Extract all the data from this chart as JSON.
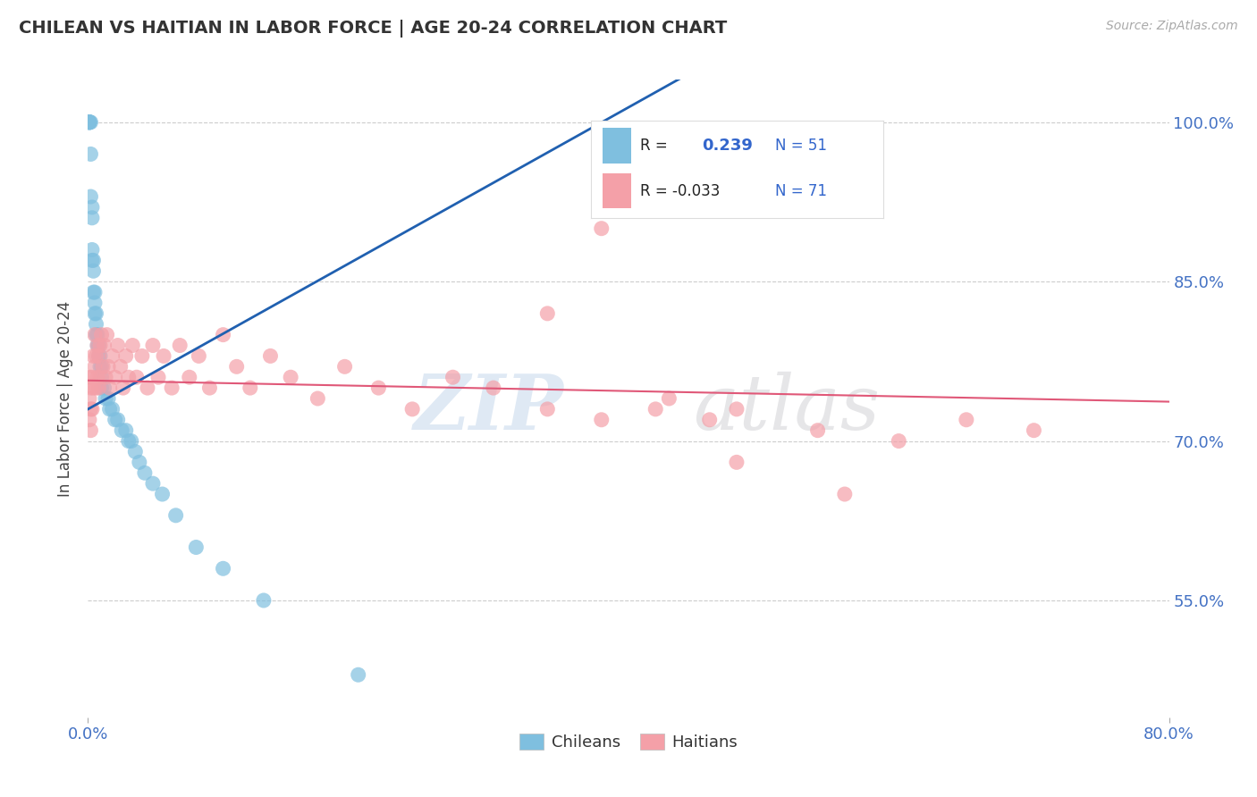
{
  "title": "CHILEAN VS HAITIAN IN LABOR FORCE | AGE 20-24 CORRELATION CHART",
  "source_text": "Source: ZipAtlas.com",
  "ylabel": "In Labor Force | Age 20-24",
  "xlim": [
    0.0,
    0.8
  ],
  "ylim": [
    0.44,
    1.04
  ],
  "ytick_values": [
    0.55,
    0.7,
    0.85,
    1.0
  ],
  "blue_color": "#7fbfdf",
  "pink_color": "#f4a0a8",
  "line_blue": "#2060b0",
  "line_pink": "#e05878",
  "chilean_x": [
    0.001,
    0.001,
    0.001,
    0.001,
    0.001,
    0.002,
    0.002,
    0.002,
    0.003,
    0.003,
    0.003,
    0.003,
    0.004,
    0.004,
    0.004,
    0.005,
    0.005,
    0.005,
    0.006,
    0.006,
    0.006,
    0.007,
    0.007,
    0.008,
    0.008,
    0.009,
    0.009,
    0.01,
    0.01,
    0.01,
    0.012,
    0.013,
    0.015,
    0.016,
    0.018,
    0.02,
    0.022,
    0.025,
    0.028,
    0.03,
    0.032,
    0.035,
    0.038,
    0.042,
    0.048,
    0.055,
    0.065,
    0.08,
    0.1,
    0.13,
    0.2
  ],
  "chilean_y": [
    1.0,
    1.0,
    1.0,
    1.0,
    1.0,
    1.0,
    0.97,
    0.93,
    0.92,
    0.91,
    0.88,
    0.87,
    0.87,
    0.86,
    0.84,
    0.84,
    0.83,
    0.82,
    0.82,
    0.81,
    0.8,
    0.8,
    0.79,
    0.79,
    0.78,
    0.78,
    0.77,
    0.77,
    0.76,
    0.75,
    0.75,
    0.74,
    0.74,
    0.73,
    0.73,
    0.72,
    0.72,
    0.71,
    0.71,
    0.7,
    0.7,
    0.69,
    0.68,
    0.67,
    0.66,
    0.65,
    0.63,
    0.6,
    0.58,
    0.55,
    0.48
  ],
  "haitian_x": [
    0.001,
    0.001,
    0.001,
    0.002,
    0.002,
    0.002,
    0.003,
    0.003,
    0.004,
    0.004,
    0.005,
    0.005,
    0.006,
    0.006,
    0.007,
    0.007,
    0.008,
    0.008,
    0.009,
    0.009,
    0.01,
    0.011,
    0.012,
    0.013,
    0.014,
    0.015,
    0.016,
    0.018,
    0.02,
    0.022,
    0.024,
    0.026,
    0.028,
    0.03,
    0.033,
    0.036,
    0.04,
    0.044,
    0.048,
    0.052,
    0.056,
    0.062,
    0.068,
    0.075,
    0.082,
    0.09,
    0.1,
    0.11,
    0.12,
    0.135,
    0.15,
    0.17,
    0.19,
    0.215,
    0.24,
    0.27,
    0.3,
    0.34,
    0.38,
    0.43,
    0.48,
    0.54,
    0.6,
    0.65,
    0.7,
    0.34,
    0.48,
    0.56,
    0.38,
    0.42,
    0.46
  ],
  "haitian_y": [
    0.76,
    0.74,
    0.72,
    0.75,
    0.73,
    0.71,
    0.76,
    0.73,
    0.78,
    0.75,
    0.8,
    0.77,
    0.78,
    0.75,
    0.79,
    0.76,
    0.78,
    0.75,
    0.79,
    0.76,
    0.8,
    0.77,
    0.79,
    0.76,
    0.8,
    0.77,
    0.75,
    0.78,
    0.76,
    0.79,
    0.77,
    0.75,
    0.78,
    0.76,
    0.79,
    0.76,
    0.78,
    0.75,
    0.79,
    0.76,
    0.78,
    0.75,
    0.79,
    0.76,
    0.78,
    0.75,
    0.8,
    0.77,
    0.75,
    0.78,
    0.76,
    0.74,
    0.77,
    0.75,
    0.73,
    0.76,
    0.75,
    0.73,
    0.72,
    0.74,
    0.73,
    0.71,
    0.7,
    0.72,
    0.71,
    0.82,
    0.68,
    0.65,
    0.9,
    0.73,
    0.72
  ]
}
